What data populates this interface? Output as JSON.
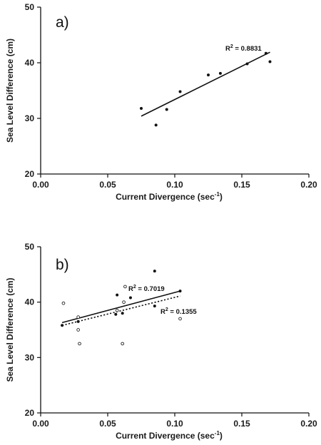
{
  "chart_data": [
    {
      "type": "scatter",
      "panel_label": "a)",
      "xlabel": "Current Divergence (sec",
      "xlabel_sup": "-1",
      "xlabel_suffix": ")",
      "ylabel": "Sea Level Difference (cm)",
      "xlim": [
        0.0,
        0.2
      ],
      "ylim": [
        20,
        50
      ],
      "xticks": [
        "0.00",
        "0.05",
        "0.10",
        "0.15",
        "0.20"
      ],
      "yticks": [
        "20",
        "30",
        "40",
        "50"
      ],
      "grid": false,
      "series": [
        {
          "points": [
            {
              "x": 0.075,
              "y": 31.8
            },
            {
              "x": 0.086,
              "y": 28.8
            },
            {
              "x": 0.094,
              "y": 31.6
            },
            {
              "x": 0.104,
              "y": 34.8
            },
            {
              "x": 0.125,
              "y": 37.8
            },
            {
              "x": 0.134,
              "y": 38.1
            },
            {
              "x": 0.154,
              "y": 39.8
            },
            {
              "x": 0.168,
              "y": 41.7
            },
            {
              "x": 0.171,
              "y": 40.2
            }
          ],
          "marker": "filled",
          "fit": {
            "x0": 0.075,
            "y0": 30.4,
            "x1": 0.171,
            "y1": 41.9,
            "style": "solid"
          },
          "r2_label": {
            "prefix": "R",
            "sup": "2",
            "value": " = 0.8831"
          }
        }
      ]
    },
    {
      "type": "scatter",
      "panel_label": "b)",
      "xlabel": "Current Divergence (sec",
      "xlabel_sup": "-1",
      "xlabel_suffix": ")",
      "ylabel": "Sea Level Difference (cm)",
      "xlim": [
        0.0,
        0.2
      ],
      "ylim": [
        20,
        50
      ],
      "xticks": [
        "0.00",
        "0.05",
        "0.10",
        "0.15",
        "0.20"
      ],
      "yticks": [
        "20",
        "30",
        "40",
        "50"
      ],
      "grid": false,
      "series": [
        {
          "points": [
            {
              "x": 0.016,
              "y": 35.8
            },
            {
              "x": 0.028,
              "y": 36.5
            },
            {
              "x": 0.056,
              "y": 37.8
            },
            {
              "x": 0.057,
              "y": 41.3
            },
            {
              "x": 0.061,
              "y": 38.0
            },
            {
              "x": 0.067,
              "y": 40.8
            },
            {
              "x": 0.085,
              "y": 45.6
            },
            {
              "x": 0.085,
              "y": 39.3
            },
            {
              "x": 0.104,
              "y": 42.0
            }
          ],
          "marker": "filled",
          "fit": {
            "x0": 0.016,
            "y0": 36.3,
            "x1": 0.104,
            "y1": 42.0,
            "style": "solid"
          },
          "r2_label": {
            "prefix": "R",
            "sup": "2",
            "value": " = 0.7019"
          }
        },
        {
          "points": [
            {
              "x": 0.017,
              "y": 39.8
            },
            {
              "x": 0.028,
              "y": 37.3
            },
            {
              "x": 0.028,
              "y": 35.0
            },
            {
              "x": 0.029,
              "y": 32.5
            },
            {
              "x": 0.057,
              "y": 38.5
            },
            {
              "x": 0.061,
              "y": 32.5
            },
            {
              "x": 0.062,
              "y": 40.0
            },
            {
              "x": 0.063,
              "y": 42.8
            },
            {
              "x": 0.104,
              "y": 37.0
            }
          ],
          "marker": "open",
          "fit": {
            "x0": 0.016,
            "y0": 35.8,
            "x1": 0.104,
            "y1": 41.1,
            "style": "dotted"
          },
          "r2_label": {
            "prefix": "R",
            "sup": "2",
            "value": " = 0.1355"
          }
        }
      ]
    }
  ]
}
